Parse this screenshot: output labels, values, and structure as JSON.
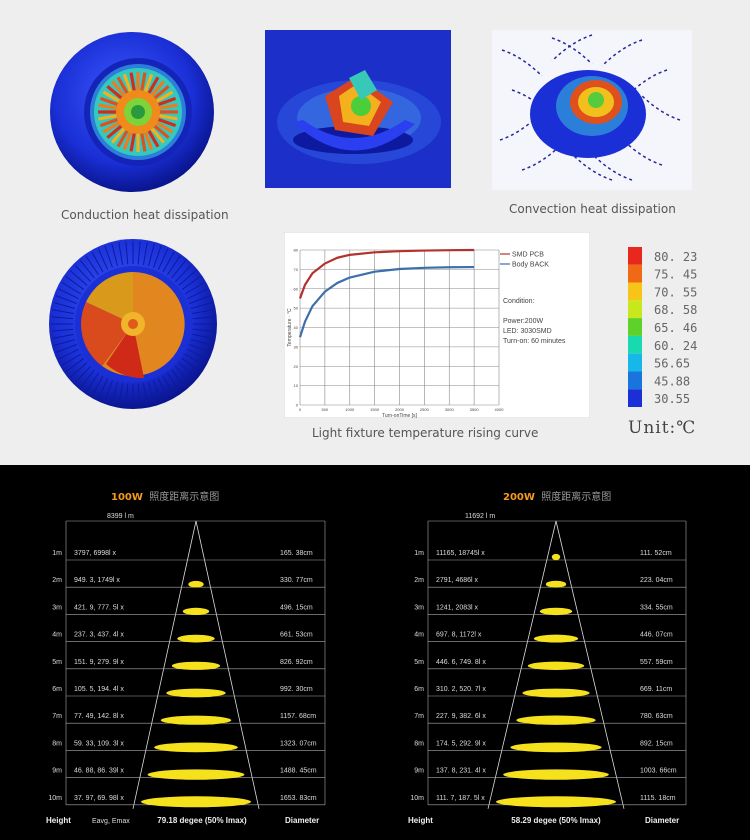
{
  "captions": {
    "conduction": "Conduction heat dissipation",
    "convection": "Convection heat dissipation",
    "rising_curve": "Light fixture temperature rising curve"
  },
  "colors": {
    "cool": "#1a2fd6",
    "hot": "#e0231b",
    "smd_pcb": "#b2322f",
    "body_back": "#3d6fa9",
    "watt_accent": "#f59a1f",
    "light_cone": "#f6e21c"
  },
  "scale": {
    "values": [
      "80. 23",
      "75. 45",
      "70. 55",
      "68. 58",
      "65. 46",
      "60. 24",
      "56.65",
      "45.88",
      "30.55"
    ],
    "swatches": [
      "#e8281c",
      "#f06a16",
      "#f9c418",
      "#c8e81e",
      "#5ed12a",
      "#19d9b0",
      "#18b7ea",
      "#1a74dd",
      "#1a2fd6"
    ],
    "unit": "Unit:℃"
  },
  "chart_data": {
    "type": "line",
    "xlabel": "Turn-onTime [s]",
    "ylabel": "Temperature · °C",
    "xlim": [
      0,
      4000
    ],
    "ylim": [
      0,
      80
    ],
    "xticks": [
      "0",
      "500",
      "1000",
      "1500",
      "2000",
      "2500",
      "3000",
      "3500",
      "4000"
    ],
    "yticks": [
      "0",
      "10",
      "20",
      "30",
      "40",
      "50",
      "60",
      "70",
      "80"
    ],
    "grid": true,
    "legend_position": "right",
    "series": [
      {
        "name": "SMD PCB",
        "x": [
          0,
          100,
          250,
          500,
          750,
          1000,
          1500,
          2000,
          2500,
          3000,
          3500
        ],
        "values": [
          55,
          62,
          68,
          73,
          76,
          77.5,
          78.8,
          79.4,
          79.7,
          79.9,
          80.0
        ]
      },
      {
        "name": "Body BACK",
        "x": [
          0,
          100,
          250,
          500,
          750,
          1000,
          1500,
          2000,
          2500,
          3000,
          3500
        ],
        "values": [
          35,
          43,
          51,
          58.5,
          63,
          65.8,
          68.8,
          70.2,
          70.8,
          71.1,
          71.2
        ]
      }
    ],
    "notes": [
      "Condition:",
      "Power:200W",
      "LED: 3030SMD",
      "Turn-on: 60 minutes"
    ]
  },
  "panels": [
    {
      "title_power": "100W",
      "title_text": "照度距离示意图",
      "lumen": "8399 l m",
      "rows": [
        {
          "h": "1m",
          "lux": "3797, 6998l x",
          "d": "165. 38cm",
          "w": 0.0
        },
        {
          "h": "2m",
          "lux": "949. 3, 1749l x",
          "d": "330. 77cm",
          "w": 0.14
        },
        {
          "h": "3m",
          "lux": "421. 9, 777. 5l x",
          "d": "496. 15cm",
          "w": 0.24
        },
        {
          "h": "4m",
          "lux": "237. 3, 437. 4l x",
          "d": "661. 53cm",
          "w": 0.34
        },
        {
          "h": "5m",
          "lux": "151. 9, 279. 9l x",
          "d": "826. 92cm",
          "w": 0.44
        },
        {
          "h": "6m",
          "lux": "105. 5, 194. 4l x",
          "d": "992. 30cm",
          "w": 0.54
        },
        {
          "h": "7m",
          "lux": "77. 49, 142. 8l x",
          "d": "1157. 68cm",
          "w": 0.64
        },
        {
          "h": "8m",
          "lux": "59. 33, 109. 3l x",
          "d": "1323. 07cm",
          "w": 0.76
        },
        {
          "h": "9m",
          "lux": "46. 88, 86. 39l x",
          "d": "1488. 45cm",
          "w": 0.88
        },
        {
          "h": "10m",
          "lux": "37. 97, 69. 98l x",
          "d": "1653. 83cm",
          "w": 1.0
        }
      ],
      "footer_height": "Height",
      "footer_eavg": "Eavg, Emax",
      "footer_angle": "79.18 degee (50% Imax)",
      "footer_diameter": "Diameter"
    },
    {
      "title_power": "200W",
      "title_text": "照度距离示意图",
      "lumen": "11692 l m",
      "rows": [
        {
          "h": "1m",
          "lux": "11165, 18745l x",
          "d": "111. 52cm",
          "w": 0.07
        },
        {
          "h": "2m",
          "lux": "2791, 4686l x",
          "d": "223. 04cm",
          "w": 0.17
        },
        {
          "h": "3m",
          "lux": "1241, 2083l x",
          "d": "334. 55cm",
          "w": 0.27
        },
        {
          "h": "4m",
          "lux": "697. 8, 1172l x",
          "d": "446. 07cm",
          "w": 0.37
        },
        {
          "h": "5m",
          "lux": "446. 6, 749. 8l x",
          "d": "557. 59cm",
          "w": 0.47
        },
        {
          "h": "6m",
          "lux": "310. 2, 520. 7l x",
          "d": "669. 11cm",
          "w": 0.56
        },
        {
          "h": "7m",
          "lux": "227. 9, 382. 6l x",
          "d": "780. 63cm",
          "w": 0.66
        },
        {
          "h": "8m",
          "lux": "174. 5, 292. 9l x",
          "d": "892. 15cm",
          "w": 0.76
        },
        {
          "h": "9m",
          "lux": "137. 8, 231. 4l x",
          "d": "1003. 66cm",
          "w": 0.88
        },
        {
          "h": "10m",
          "lux": "111. 7, 187. 5l x",
          "d": "1115. 18cm",
          "w": 1.0
        }
      ],
      "footer_height": "Height",
      "footer_eavg": "",
      "footer_angle": "58.29 degee (50% Imax)",
      "footer_diameter": "Diameter"
    }
  ]
}
